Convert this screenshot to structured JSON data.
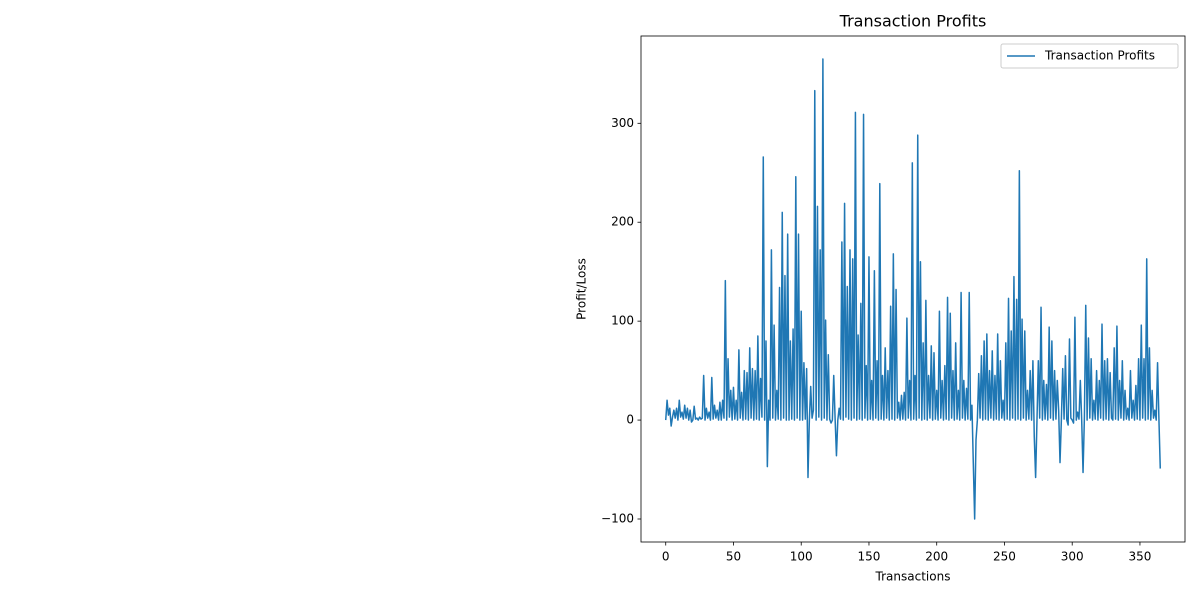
{
  "chart_data": {
    "type": "line",
    "title": "Transaction Profits",
    "x_label": "Transactions",
    "y_label": "Profit/Loss",
    "legend": "upper right",
    "grid": false,
    "xlim": [
      -18.25,
      383.25
    ],
    "ylim": [
      -123.25,
      388.25
    ],
    "xticks": [
      0,
      50,
      100,
      150,
      200,
      250,
      300,
      350
    ],
    "yticks": [
      {
        "value": -100,
        "label": "−100"
      },
      0,
      100,
      200,
      300
    ],
    "x": [
      0,
      1,
      2,
      3,
      4,
      5,
      6,
      7,
      8,
      9,
      10,
      11,
      12,
      13,
      14,
      15,
      16,
      17,
      18,
      19,
      20,
      21,
      22,
      23,
      24,
      25,
      26,
      27,
      28,
      29,
      30,
      31,
      32,
      33,
      34,
      35,
      36,
      37,
      38,
      39,
      40,
      41,
      42,
      43,
      44,
      45,
      46,
      47,
      48,
      49,
      50,
      51,
      52,
      53,
      54,
      55,
      56,
      57,
      58,
      59,
      60,
      61,
      62,
      63,
      64,
      65,
      66,
      67,
      68,
      69,
      70,
      71,
      72,
      73,
      74,
      75,
      76,
      77,
      78,
      79,
      80,
      81,
      82,
      83,
      84,
      85,
      86,
      87,
      88,
      89,
      90,
      91,
      92,
      93,
      94,
      95,
      96,
      97,
      98,
      99,
      100,
      101,
      102,
      103,
      104,
      105,
      106,
      107,
      108,
      109,
      110,
      111,
      112,
      113,
      114,
      115,
      116,
      117,
      118,
      119,
      120,
      121,
      122,
      123,
      124,
      125,
      126,
      127,
      128,
      129,
      130,
      131,
      132,
      133,
      134,
      135,
      136,
      137,
      138,
      139,
      140,
      141,
      142,
      143,
      144,
      145,
      146,
      147,
      148,
      149,
      150,
      151,
      152,
      153,
      154,
      155,
      156,
      157,
      158,
      159,
      160,
      161,
      162,
      163,
      164,
      165,
      166,
      167,
      168,
      169,
      170,
      171,
      172,
      173,
      174,
      175,
      176,
      177,
      178,
      179,
      180,
      181,
      182,
      183,
      184,
      185,
      186,
      187,
      188,
      189,
      190,
      191,
      192,
      193,
      194,
      195,
      196,
      197,
      198,
      199,
      200,
      201,
      202,
      203,
      204,
      205,
      206,
      207,
      208,
      209,
      210,
      211,
      212,
      213,
      214,
      215,
      216,
      217,
      218,
      219,
      220,
      221,
      222,
      223,
      224,
      225,
      226,
      227,
      228,
      229,
      230,
      231,
      232,
      233,
      234,
      235,
      236,
      237,
      238,
      239,
      240,
      241,
      242,
      243,
      244,
      245,
      246,
      247,
      248,
      249,
      250,
      251,
      252,
      253,
      254,
      255,
      256,
      257,
      258,
      259,
      260,
      261,
      262,
      263,
      264,
      265,
      266,
      267,
      268,
      269,
      270,
      271,
      272,
      273,
      274,
      275,
      276,
      277,
      278,
      279,
      280,
      281,
      282,
      283,
      284,
      285,
      286,
      287,
      288,
      289,
      290,
      291,
      292,
      293,
      294,
      295,
      296,
      297,
      298,
      299,
      300,
      301,
      302,
      303,
      304,
      305,
      306,
      307,
      308,
      309,
      310,
      311,
      312,
      313,
      314,
      315,
      316,
      317,
      318,
      319,
      320,
      321,
      322,
      323,
      324,
      325,
      326,
      327,
      328,
      329,
      330,
      331,
      332,
      333,
      334,
      335,
      336,
      337,
      338,
      339,
      340,
      341,
      342,
      343,
      344,
      345,
      346,
      347,
      348,
      349,
      350,
      351,
      352,
      353,
      354,
      355,
      356,
      357,
      358,
      359,
      360,
      361,
      362,
      363,
      364,
      365
    ],
    "series": [
      {
        "name": "Transaction Profits",
        "color": "#1f77b4",
        "values": [
          0,
          20,
          5,
          12,
          -6,
          3,
          10,
          2,
          12,
          0,
          20,
          3,
          8,
          1,
          15,
          2,
          12,
          0,
          10,
          -2,
          0,
          14,
          1,
          2,
          0,
          3,
          1,
          2,
          45,
          0,
          12,
          2,
          8,
          0,
          43,
          1,
          15,
          2,
          10,
          0,
          18,
          0,
          20,
          2,
          141,
          0,
          62,
          3,
          30,
          0,
          33,
          1,
          20,
          0,
          71,
          2,
          28,
          0,
          50,
          1,
          48,
          0,
          73,
          2,
          52,
          0,
          50,
          1,
          85,
          0,
          42,
          3,
          266,
          0,
          80,
          -47,
          20,
          0,
          172,
          2,
          96,
          0,
          30,
          1,
          134,
          0,
          210,
          2,
          146,
          0,
          188,
          0,
          80,
          1,
          92,
          0,
          246,
          2,
          188,
          0,
          110,
          0,
          58,
          1,
          52,
          -58,
          0,
          34,
          2,
          10,
          333,
          0,
          216,
          3,
          172,
          0,
          365,
          2,
          101,
          0,
          66,
          1,
          -3,
          0,
          45,
          2,
          -36,
          0,
          12,
          1,
          180,
          0,
          219,
          3,
          135,
          1,
          172,
          0,
          163,
          2,
          311,
          0,
          86,
          1,
          118,
          0,
          309,
          2,
          55,
          0,
          165,
          1,
          40,
          0,
          151,
          2,
          60,
          0,
          239,
          1,
          45,
          0,
          73,
          2,
          50,
          0,
          115,
          1,
          168,
          0,
          132,
          2,
          18,
          0,
          25,
          1,
          28,
          0,
          103,
          2,
          40,
          0,
          260,
          1,
          45,
          0,
          288,
          2,
          160,
          0,
          78,
          1,
          121,
          0,
          45,
          2,
          75,
          0,
          68,
          1,
          30,
          0,
          110,
          2,
          40,
          0,
          55,
          1,
          124,
          0,
          108,
          2,
          50,
          0,
          78,
          1,
          30,
          0,
          129,
          2,
          40,
          0,
          32,
          1,
          129,
          0,
          15,
          -43,
          -100,
          -20,
          0,
          47,
          2,
          65,
          0,
          80,
          1,
          87,
          0,
          50,
          2,
          70,
          0,
          45,
          1,
          87,
          0,
          60,
          2,
          20,
          0,
          78,
          1,
          123,
          0,
          90,
          2,
          145,
          0,
          122,
          1,
          252,
          0,
          102,
          2,
          90,
          0,
          30,
          1,
          50,
          0,
          60,
          -17,
          -58,
          0,
          60,
          2,
          114,
          0,
          40,
          1,
          36,
          0,
          94,
          2,
          80,
          0,
          50,
          1,
          40,
          10,
          -43,
          0,
          52,
          1,
          65,
          0,
          -5,
          82,
          2,
          0,
          -3,
          104,
          0,
          8,
          1,
          40,
          0,
          -53,
          3,
          116,
          0,
          83,
          2,
          62,
          0,
          20,
          1,
          50,
          0,
          40,
          2,
          97,
          0,
          60,
          1,
          62,
          0,
          48,
          2,
          0,
          73,
          1,
          95,
          0,
          40,
          2,
          60,
          0,
          30,
          1,
          12,
          0,
          50,
          2,
          20,
          0,
          35,
          1,
          62,
          0,
          96,
          2,
          62,
          0,
          163,
          1,
          73,
          0,
          30,
          2,
          10,
          0,
          58,
          1,
          -49
        ]
      }
    ]
  }
}
